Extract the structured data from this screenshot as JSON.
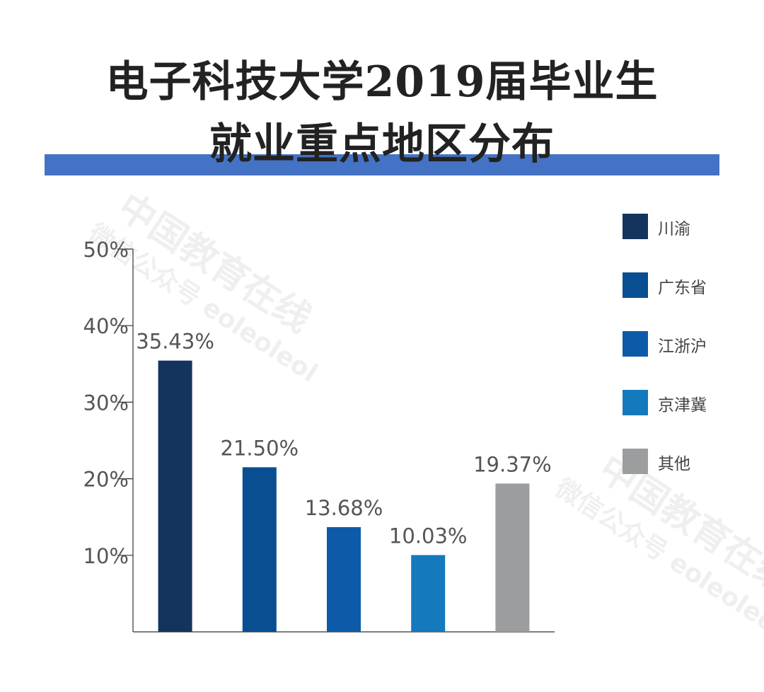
{
  "title": {
    "line1": "电子科技大学2019届毕业生",
    "line2": "就业重点地区分布"
  },
  "accent_color": "#4472C4",
  "watermark": {
    "line1": "中国教育在线",
    "line2": "微信公众号 eoleoleol"
  },
  "chart_data": {
    "type": "bar",
    "categories": [
      "川渝",
      "广东省",
      "江浙沪",
      "京津冀",
      "其他"
    ],
    "values": [
      35.43,
      21.5,
      13.68,
      10.03,
      19.37
    ],
    "data_labels": [
      "35.43%",
      "21.50%",
      "13.68%",
      "10.03%",
      "19.37%"
    ],
    "colors": [
      "#14345E",
      "#084E91",
      "#0D5BA8",
      "#1579BE",
      "#9B9D9E"
    ],
    "ylim": [
      0,
      50
    ],
    "yticks": [
      10,
      20,
      30,
      40,
      50
    ],
    "ytick_labels": [
      "10%",
      "20%",
      "30%",
      "40%",
      "50%"
    ],
    "legend_position": "right",
    "grid": false
  }
}
